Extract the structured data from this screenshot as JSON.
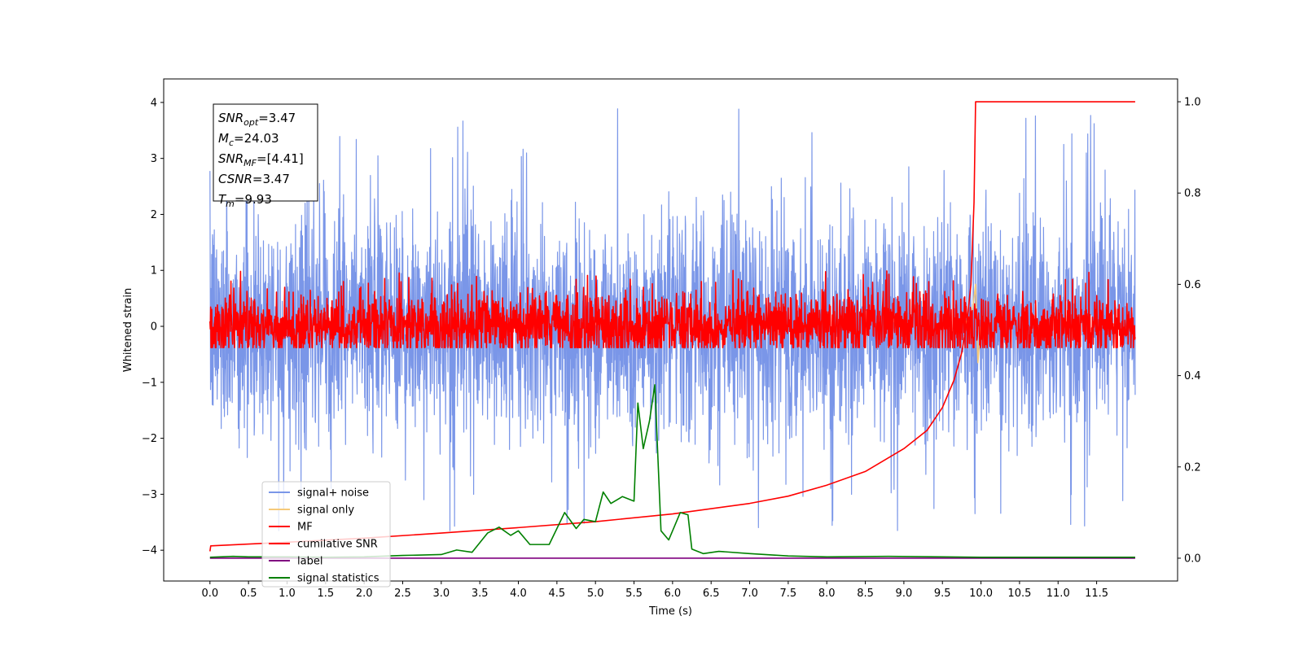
{
  "chart_data": {
    "type": "line",
    "title": "",
    "xlabel": "Time (s)",
    "ylabel": "Whitened strain",
    "xlim": [
      -0.6,
      12.55
    ],
    "ylim": [
      -4.55,
      4.42
    ],
    "ylim_right": [
      -0.05,
      1.05
    ],
    "xticks": [
      "0.0",
      "0.5",
      "1.0",
      "1.5",
      "2.0",
      "2.5",
      "3.0",
      "3.5",
      "4.0",
      "4.5",
      "5.0",
      "5.5",
      "6.0",
      "6.5",
      "7.0",
      "7.5",
      "8.0",
      "8.5",
      "9.0",
      "9.5",
      "10.0",
      "10.5",
      "11.0",
      "11.5"
    ],
    "yticks_left": [
      "−4",
      "−3",
      "−2",
      "−1",
      "0",
      "1",
      "2",
      "3",
      "4"
    ],
    "yticks_right": [
      "0.0",
      "0.2",
      "0.4",
      "0.6",
      "0.8",
      "1.0"
    ],
    "grid": false,
    "legend_position": "lower-left",
    "annotation": [
      {
        "base": "SNR",
        "sub": "opt",
        "value": "=3.47"
      },
      {
        "base": "M",
        "sub": "c",
        "value": "=24.03"
      },
      {
        "base": "SNR",
        "sub": "MF",
        "value": "=[4.41]"
      },
      {
        "base": "CSNR",
        "sub": "",
        "value": "=3.47"
      },
      {
        "base": "T",
        "sub": "m",
        "value": "=9.93"
      }
    ],
    "series": [
      {
        "name": "signal+ noise",
        "color": "#7a96e8",
        "axis": "left",
        "noise": {
          "mean": 0.0,
          "envelope": 2.3,
          "std": 1.0,
          "max": 4.0,
          "min": -3.65
        }
      },
      {
        "name": "signal only",
        "color": "#f5c97a",
        "axis": "left",
        "x": [
          9.7,
          9.8,
          9.85,
          9.9,
          9.93,
          9.96,
          10.0
        ],
        "y": [
          0.0,
          0.1,
          -0.1,
          0.4,
          0.75,
          -0.65,
          0.0
        ]
      },
      {
        "name": "MF",
        "color": "#ff0000",
        "axis": "left",
        "noise": {
          "mean": 0.0,
          "envelope": 0.6,
          "std": 0.3,
          "max": 1.0,
          "min": -0.38
        }
      },
      {
        "name": "cumilative SNR",
        "color": "#ff0000",
        "axis": "right",
        "x": [
          0.0,
          0.01,
          1.0,
          2.0,
          3.0,
          4.0,
          5.0,
          6.0,
          7.0,
          7.5,
          8.0,
          8.5,
          9.0,
          9.3,
          9.5,
          9.65,
          9.75,
          9.82,
          9.87,
          9.91,
          9.93,
          12.0
        ],
        "y": [
          0.015,
          0.027,
          0.035,
          0.044,
          0.055,
          0.067,
          0.08,
          0.097,
          0.12,
          0.136,
          0.16,
          0.19,
          0.24,
          0.28,
          0.33,
          0.39,
          0.45,
          0.52,
          0.6,
          0.78,
          1.0,
          1.0
        ]
      },
      {
        "name": "label",
        "color": "#800080",
        "axis": "right",
        "x": [
          0.0,
          12.0
        ],
        "y": [
          0.0,
          0.0
        ]
      },
      {
        "name": "signal statistics",
        "color": "#008000",
        "axis": "right",
        "x": [
          0.0,
          0.3,
          0.5,
          1.0,
          1.5,
          2.0,
          2.5,
          3.0,
          3.2,
          3.4,
          3.6,
          3.75,
          3.9,
          4.0,
          4.15,
          4.4,
          4.6,
          4.75,
          4.85,
          5.0,
          5.1,
          5.2,
          5.35,
          5.5,
          5.55,
          5.62,
          5.7,
          5.77,
          5.85,
          5.95,
          6.1,
          6.2,
          6.25,
          6.4,
          6.6,
          7.0,
          7.5,
          8.0,
          8.8,
          9.5,
          10.0,
          12.0
        ],
        "y": [
          0.002,
          0.004,
          0.003,
          0.003,
          0.002,
          0.003,
          0.006,
          0.008,
          0.018,
          0.013,
          0.055,
          0.068,
          0.05,
          0.06,
          0.03,
          0.03,
          0.1,
          0.065,
          0.085,
          0.08,
          0.145,
          0.12,
          0.135,
          0.125,
          0.34,
          0.24,
          0.3,
          0.38,
          0.06,
          0.04,
          0.1,
          0.095,
          0.02,
          0.01,
          0.015,
          0.01,
          0.005,
          0.003,
          0.004,
          0.003,
          0.002,
          0.002
        ]
      }
    ]
  }
}
